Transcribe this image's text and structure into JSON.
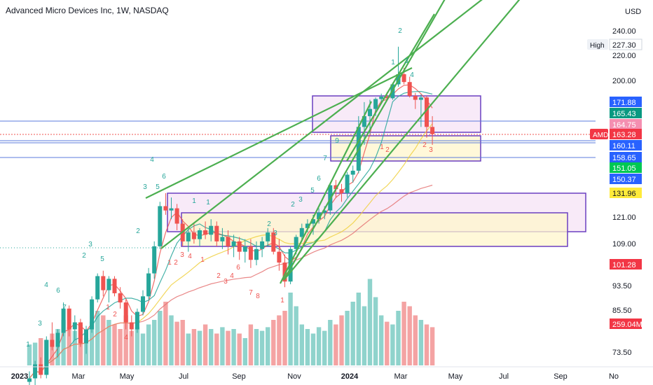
{
  "header": {
    "title": "Advanced Micro Devices Inc, 1W, NASDAQ",
    "currency": "USD"
  },
  "colors": {
    "up": "#26a69a",
    "down": "#ef5350",
    "up_volume": "#8fd3cc",
    "down_volume": "#f4a3a3",
    "zone_border": "#6a3fc0",
    "zone_pink": "#f6e3f5",
    "zone_yellow": "#fff6cc",
    "trendline": "#4caf50",
    "hline": "#5b7bdc"
  },
  "chart_data": {
    "type": "candlestick",
    "symbol": "AMD",
    "x_ticks": [
      "2023",
      "Mar",
      "May",
      "Jul",
      "Sep",
      "Nov",
      "2024",
      "Mar",
      "May",
      "Jul",
      "Sep",
      "No"
    ],
    "y_ticks": [
      "240.00",
      "220.00",
      "200.00",
      "121.00",
      "109.00",
      "93.50",
      "85.50",
      "73.50"
    ],
    "price_tags": [
      {
        "label": "High",
        "value": "227.30",
        "kind": "high"
      },
      {
        "label": "",
        "value": "171.88",
        "kind": "blue"
      },
      {
        "label": "",
        "value": "165.43",
        "kind": "green"
      },
      {
        "label": "",
        "value": "164.75",
        "kind": "pink"
      },
      {
        "label": "AMD",
        "value": "163.28",
        "kind": "red"
      },
      {
        "label": "",
        "value": "160.11",
        "kind": "blue"
      },
      {
        "label": "",
        "value": "158.65",
        "kind": "blue"
      },
      {
        "label": "",
        "value": "151.05",
        "kind": "lime"
      },
      {
        "label": "",
        "value": "150.37",
        "kind": "blue"
      },
      {
        "label": "",
        "value": "131.96",
        "kind": "yellow"
      },
      {
        "label": "",
        "value": "101.28",
        "kind": "red"
      },
      {
        "label": "",
        "value": "259.04M",
        "kind": "red"
      }
    ],
    "candles": [
      [
        65,
        68,
        62,
        66
      ],
      [
        66,
        71,
        64,
        70
      ],
      [
        70,
        72,
        66,
        67
      ],
      [
        67,
        78,
        66,
        77
      ],
      [
        77,
        82,
        74,
        75
      ],
      [
        75,
        80,
        72,
        79
      ],
      [
        79,
        88,
        78,
        86
      ],
      [
        86,
        87,
        78,
        80
      ],
      [
        80,
        84,
        77,
        82
      ],
      [
        82,
        83,
        75,
        76
      ],
      [
        76,
        81,
        73,
        80
      ],
      [
        80,
        90,
        79,
        89
      ],
      [
        89,
        98,
        88,
        97
      ],
      [
        97,
        99,
        90,
        92
      ],
      [
        92,
        97,
        88,
        96
      ],
      [
        96,
        97,
        90,
        91
      ],
      [
        91,
        93,
        86,
        88
      ],
      [
        88,
        89,
        80,
        82
      ],
      [
        82,
        84,
        78,
        80
      ],
      [
        80,
        86,
        79,
        85
      ],
      [
        85,
        92,
        84,
        90
      ],
      [
        90,
        100,
        89,
        98
      ],
      [
        98,
        110,
        96,
        108
      ],
      [
        108,
        128,
        107,
        126
      ],
      [
        126,
        132,
        122,
        124
      ],
      [
        124,
        130,
        120,
        125
      ],
      [
        125,
        127,
        115,
        118
      ],
      [
        118,
        120,
        108,
        110
      ],
      [
        110,
        116,
        106,
        114
      ],
      [
        114,
        118,
        109,
        111
      ],
      [
        111,
        116,
        108,
        115
      ],
      [
        115,
        119,
        111,
        113
      ],
      [
        113,
        120,
        110,
        117
      ],
      [
        117,
        119,
        108,
        110
      ],
      [
        110,
        116,
        107,
        112
      ],
      [
        112,
        115,
        105,
        108
      ],
      [
        108,
        113,
        104,
        110
      ],
      [
        110,
        112,
        103,
        106
      ],
      [
        106,
        111,
        102,
        108
      ],
      [
        108,
        111,
        100,
        103
      ],
      [
        103,
        110,
        101,
        107
      ],
      [
        107,
        112,
        104,
        110
      ],
      [
        110,
        116,
        108,
        114
      ],
      [
        114,
        116,
        105,
        106
      ],
      [
        106,
        111,
        99,
        102
      ],
      [
        102,
        105,
        93,
        95
      ],
      [
        95,
        108,
        94,
        107
      ],
      [
        107,
        113,
        105,
        112
      ],
      [
        112,
        118,
        110,
        116
      ],
      [
        116,
        120,
        114,
        118
      ],
      [
        118,
        122,
        113,
        120
      ],
      [
        120,
        125,
        118,
        123
      ],
      [
        123,
        126,
        120,
        124
      ],
      [
        124,
        140,
        122,
        138
      ],
      [
        138,
        142,
        130,
        135
      ],
      [
        135,
        139,
        128,
        132
      ],
      [
        132,
        148,
        130,
        146
      ],
      [
        146,
        152,
        140,
        149
      ],
      [
        149,
        168,
        147,
        165
      ],
      [
        165,
        172,
        160,
        168
      ],
      [
        168,
        175,
        163,
        170
      ],
      [
        170,
        178,
        168,
        176
      ],
      [
        176,
        183,
        172,
        179
      ],
      [
        179,
        185,
        174,
        177
      ],
      [
        177,
        197,
        175,
        195
      ],
      [
        195,
        227,
        192,
        205
      ],
      [
        205,
        210,
        195,
        198
      ],
      [
        198,
        203,
        178,
        180
      ],
      [
        180,
        184,
        170,
        175
      ],
      [
        175,
        182,
        165,
        178
      ],
      [
        178,
        180,
        162,
        165
      ],
      [
        165,
        168,
        160,
        163
      ]
    ],
    "volumes": [
      23,
      25,
      30,
      28,
      35,
      40,
      50,
      42,
      38,
      45,
      30,
      48,
      60,
      55,
      50,
      45,
      40,
      55,
      38,
      42,
      35,
      45,
      50,
      60,
      70,
      55,
      48,
      50,
      35,
      40,
      38,
      45,
      40,
      35,
      42,
      38,
      40,
      35,
      30,
      45,
      40,
      38,
      42,
      50,
      55,
      60,
      80,
      65,
      45,
      40,
      35,
      42,
      38,
      50,
      45,
      55,
      60,
      70,
      80,
      65,
      95,
      75,
      55,
      48,
      45,
      60,
      70,
      65,
      55,
      50,
      45,
      42
    ],
    "ma_series_count": 4
  }
}
